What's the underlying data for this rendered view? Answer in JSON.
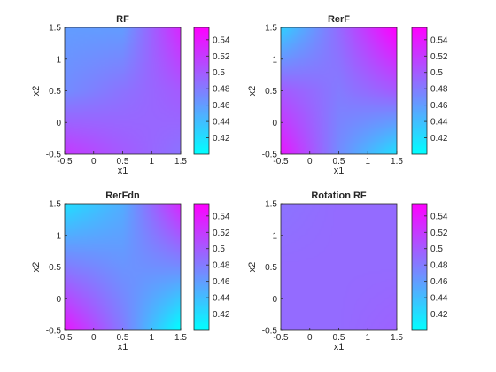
{
  "chart_data": [
    {
      "type": "heatmap",
      "title": "RF",
      "xlabel": "x1",
      "ylabel": "x2",
      "xlim": [
        -0.5,
        1.5
      ],
      "ylim": [
        -0.5,
        1.5
      ],
      "x_ticks": [
        "-0.5",
        "0",
        "0.5",
        "1",
        "1.5"
      ],
      "y_ticks": [
        "-0.5",
        "0",
        "0.5",
        "1",
        "1.5"
      ],
      "colorbar": {
        "min": 0.4,
        "max": 0.555,
        "tick_values": [
          0.42,
          0.44,
          0.46,
          0.48,
          0.5,
          0.52,
          0.54
        ],
        "tick_labels": [
          "0.42",
          "0.44",
          "0.46",
          "0.48",
          "0.5",
          "0.52",
          "0.54"
        ]
      },
      "grid_x": [
        -0.5,
        0.5,
        1.5
      ],
      "grid_y": [
        -0.5,
        0.5,
        1.5
      ],
      "z": [
        [
          0.46,
          0.46,
          0.53
        ],
        [
          0.47,
          0.485,
          0.5
        ],
        [
          0.52,
          0.5,
          0.485
        ]
      ]
    },
    {
      "type": "heatmap",
      "title": "RerF",
      "xlabel": "x1",
      "ylabel": "x2",
      "xlim": [
        -0.5,
        1.5
      ],
      "ylim": [
        -0.5,
        1.5
      ],
      "x_ticks": [
        "-0.5",
        "0",
        "0.5",
        "1",
        "1.5"
      ],
      "y_ticks": [
        "-0.5",
        "0",
        "0.5",
        "1",
        "1.5"
      ],
      "colorbar": {
        "min": 0.4,
        "max": 0.555,
        "tick_values": [
          0.42,
          0.44,
          0.46,
          0.48,
          0.5,
          0.52,
          0.54
        ],
        "tick_labels": [
          "0.42",
          "0.44",
          "0.46",
          "0.48",
          "0.5",
          "0.52",
          "0.54"
        ]
      },
      "grid_x": [
        -0.5,
        0.5,
        1.5
      ],
      "grid_y": [
        -0.5,
        0.5,
        1.5
      ],
      "z": [
        [
          0.43,
          0.49,
          0.555
        ],
        [
          0.5,
          0.48,
          0.5
        ],
        [
          0.54,
          0.47,
          0.42
        ]
      ]
    },
    {
      "type": "heatmap",
      "title": "RerFdn",
      "xlabel": "x1",
      "ylabel": "x2",
      "xlim": [
        -0.5,
        1.5
      ],
      "ylim": [
        -0.5,
        1.5
      ],
      "x_ticks": [
        "-0.5",
        "0",
        "0.5",
        "1",
        "1.5"
      ],
      "y_ticks": [
        "-0.5",
        "0",
        "0.5",
        "1",
        "1.5"
      ],
      "colorbar": {
        "min": 0.4,
        "max": 0.555,
        "tick_values": [
          0.42,
          0.44,
          0.46,
          0.48,
          0.5,
          0.52,
          0.54
        ],
        "tick_labels": [
          "0.42",
          "0.44",
          "0.46",
          "0.48",
          "0.5",
          "0.52",
          "0.54"
        ]
      },
      "grid_x": [
        -0.5,
        0.5,
        1.5
      ],
      "grid_y": [
        -0.5,
        0.5,
        1.5
      ],
      "z": [
        [
          0.42,
          0.45,
          0.53
        ],
        [
          0.48,
          0.465,
          0.47
        ],
        [
          0.54,
          0.48,
          0.4
        ]
      ]
    },
    {
      "type": "heatmap",
      "title": "Rotation RF",
      "xlabel": "x1",
      "ylabel": "x2",
      "xlim": [
        -0.5,
        1.5
      ],
      "ylim": [
        -0.5,
        1.5
      ],
      "x_ticks": [
        "-0.5",
        "0",
        "0.5",
        "1",
        "1.5"
      ],
      "y_ticks": [
        "-0.5",
        "0",
        "0.5",
        "1",
        "1.5"
      ],
      "colorbar": {
        "min": 0.4,
        "max": 0.555,
        "tick_values": [
          0.42,
          0.44,
          0.46,
          0.48,
          0.5,
          0.52,
          0.54
        ],
        "tick_labels": [
          "0.42",
          "0.44",
          "0.46",
          "0.48",
          "0.5",
          "0.52",
          "0.54"
        ]
      },
      "grid_x": [
        -0.5,
        0.5,
        1.5
      ],
      "grid_y": [
        -0.5,
        0.5,
        1.5
      ],
      "z": [
        [
          0.485,
          0.49,
          0.49
        ],
        [
          0.49,
          0.49,
          0.49
        ],
        [
          0.49,
          0.49,
          0.495
        ]
      ]
    }
  ]
}
